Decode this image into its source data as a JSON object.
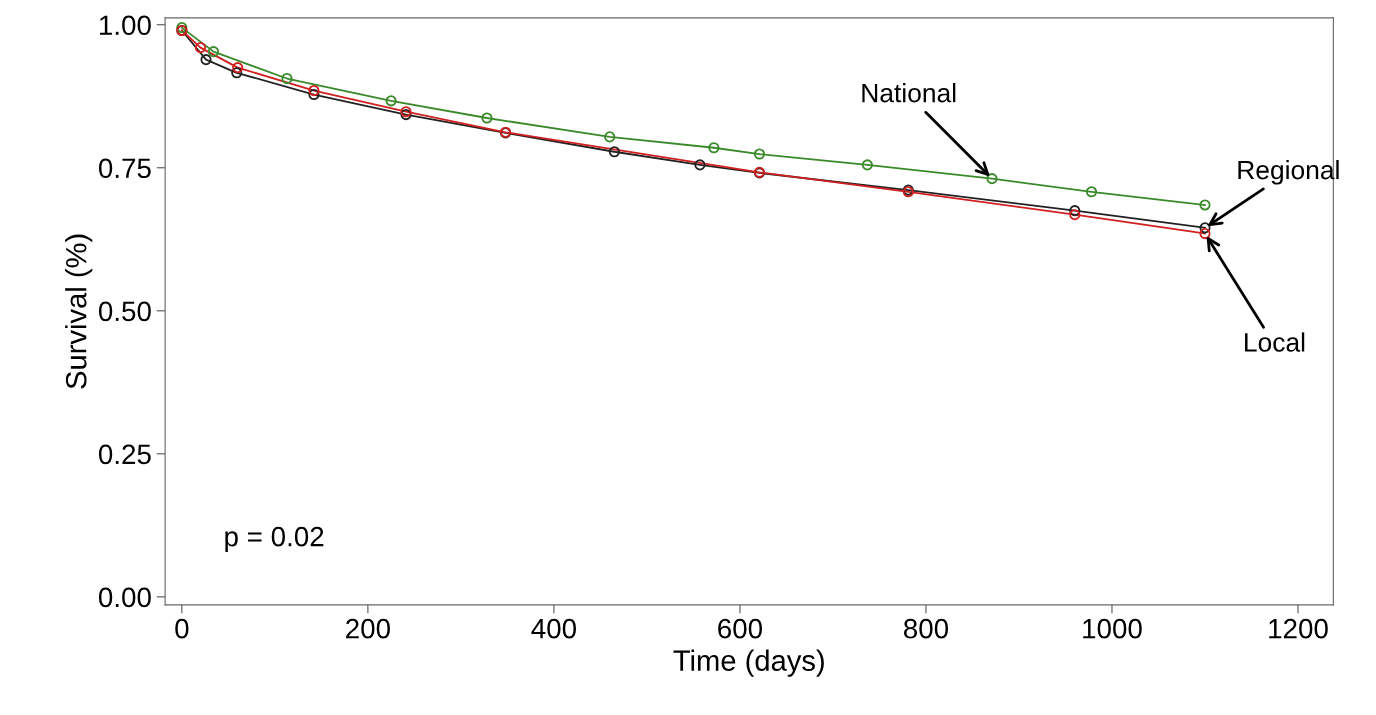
{
  "chart_data": {
    "type": "line",
    "xlabel": "Time (days)",
    "ylabel": "Survival (%)",
    "annotations": [
      "p = 0.02"
    ],
    "xlim": [
      -18,
      1238
    ],
    "ylim": [
      -0.014,
      1.012
    ],
    "xticks": [
      0,
      200,
      400,
      600,
      800,
      1000,
      1200
    ],
    "yticks": [
      {
        "value": 0,
        "label": "0.00"
      },
      {
        "value": 0.25,
        "label": "0.25"
      },
      {
        "value": 0.5,
        "label": "0.50"
      },
      {
        "value": 0.75,
        "label": "0.75"
      },
      {
        "value": 1,
        "label": "1.00"
      }
    ],
    "grid": false,
    "legend": false,
    "marker": "circle",
    "line_style": "solid",
    "series": [
      {
        "name": "National",
        "color": "#3a8a2a",
        "x": [
          0,
          34,
          113,
          225,
          328,
          460,
          572,
          621,
          737,
          871,
          978,
          1100
        ],
        "values": [
          0.995,
          0.953,
          0.906,
          0.867,
          0.837,
          0.804,
          0.785,
          0.774,
          0.755,
          0.731,
          0.708,
          0.685
        ]
      },
      {
        "name": "Regional",
        "color": "#222222",
        "x": [
          0,
          26,
          59,
          142,
          241,
          348,
          465,
          557,
          621,
          781,
          960,
          1100
        ],
        "values": [
          0.99,
          0.939,
          0.916,
          0.878,
          0.843,
          0.811,
          0.778,
          0.755,
          0.741,
          0.711,
          0.675,
          0.645
        ]
      },
      {
        "name": "Local",
        "color": "#d02020",
        "x": [
          0,
          20,
          60,
          142,
          241,
          348,
          621,
          781,
          960,
          1100
        ],
        "values": [
          0.99,
          0.96,
          0.925,
          0.885,
          0.848,
          0.812,
          0.742,
          0.708,
          0.668,
          0.635
        ]
      }
    ]
  }
}
